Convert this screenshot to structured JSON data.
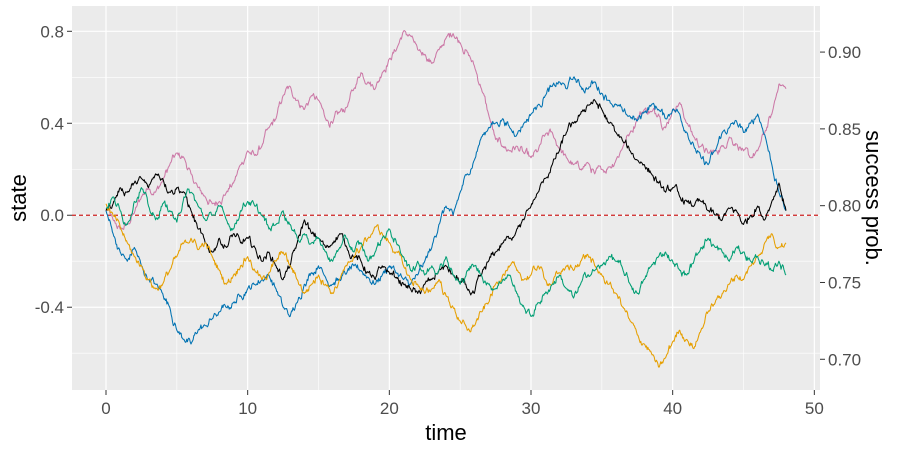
{
  "chart_data": {
    "type": "line",
    "xlabel": "time",
    "ylabel": "state",
    "y2label": "success prob.",
    "xlim": [
      -2.4,
      50.4
    ],
    "ylim": [
      -0.76,
      0.91
    ],
    "y2lim": [
      0.68,
      0.93
    ],
    "x_ticks": [
      0,
      10,
      20,
      30,
      40,
      50
    ],
    "y_ticks": [
      -0.4,
      0.0,
      0.4,
      0.8
    ],
    "y_tick_labels": [
      "-0.4",
      "0.0",
      "0.4",
      "0.8"
    ],
    "y2_ticks": [
      0.7,
      0.75,
      0.8,
      0.85,
      0.9
    ],
    "y2_tick_labels": [
      "0.70",
      "0.75",
      "0.80",
      "0.85",
      "0.90"
    ],
    "grid": true,
    "panel_background": "#EBEBEB",
    "reference_line": {
      "y": 0.0,
      "color": "#CC2222",
      "style": "dashed"
    },
    "series": [
      {
        "color": "#CC79A7",
        "x": [
          0,
          0.5,
          1,
          1.5,
          2,
          2.5,
          3,
          3.5,
          4,
          4.5,
          5,
          5.5,
          6,
          6.5,
          7,
          7.5,
          8,
          8.5,
          9,
          9.5,
          10,
          10.5,
          11,
          11.5,
          12,
          12.5,
          13,
          13.5,
          14,
          14.5,
          15,
          15.5,
          16,
          16.5,
          17,
          17.5,
          18,
          18.5,
          19,
          19.5,
          20,
          20.5,
          21,
          21.5,
          22,
          22.5,
          23,
          23.5,
          24,
          24.5,
          25,
          25.5,
          26,
          26.5,
          27,
          27.5,
          28,
          28.5,
          29,
          29.5,
          30,
          30.5,
          31,
          31.5,
          32,
          32.5,
          33,
          33.5,
          34,
          34.5,
          35,
          35.5,
          36,
          36.5,
          37,
          37.5,
          38,
          38.5,
          39,
          39.5,
          40,
          40.5,
          41,
          41.5,
          42,
          42.5,
          43,
          43.5,
          44,
          44.5,
          45,
          45.5,
          46,
          46.5,
          47,
          47.5,
          48
        ],
        "values": [
          0.03,
          -0.02,
          -0.06,
          -0.04,
          0.01,
          0.08,
          0.12,
          0.1,
          0.15,
          0.22,
          0.27,
          0.25,
          0.18,
          0.12,
          0.08,
          0.05,
          0.06,
          0.1,
          0.14,
          0.22,
          0.28,
          0.26,
          0.3,
          0.38,
          0.42,
          0.52,
          0.56,
          0.5,
          0.46,
          0.52,
          0.5,
          0.42,
          0.4,
          0.45,
          0.47,
          0.55,
          0.62,
          0.58,
          0.55,
          0.62,
          0.68,
          0.72,
          0.8,
          0.78,
          0.72,
          0.7,
          0.66,
          0.72,
          0.77,
          0.79,
          0.75,
          0.71,
          0.65,
          0.55,
          0.44,
          0.33,
          0.3,
          0.28,
          0.3,
          0.27,
          0.25,
          0.28,
          0.35,
          0.36,
          0.29,
          0.25,
          0.22,
          0.2,
          0.23,
          0.18,
          0.2,
          0.21,
          0.24,
          0.3,
          0.36,
          0.42,
          0.46,
          0.45,
          0.44,
          0.38,
          0.46,
          0.49,
          0.4,
          0.34,
          0.3,
          0.27,
          0.28,
          0.3,
          0.34,
          0.31,
          0.28,
          0.25,
          0.28,
          0.36,
          0.44,
          0.57,
          0.55
        ]
      },
      {
        "color": "#0072B2",
        "x": [
          0,
          0.5,
          1,
          1.5,
          2,
          2.5,
          3,
          3.5,
          4,
          4.5,
          5,
          5.5,
          6,
          6.5,
          7,
          7.5,
          8,
          8.5,
          9,
          9.5,
          10,
          10.5,
          11,
          11.5,
          12,
          12.5,
          13,
          13.5,
          14,
          14.5,
          15,
          15.5,
          16,
          16.5,
          17,
          17.5,
          18,
          18.5,
          19,
          19.5,
          20,
          20.5,
          21,
          21.5,
          22,
          22.5,
          23,
          23.5,
          24,
          24.5,
          25,
          25.5,
          26,
          26.5,
          27,
          27.5,
          28,
          28.5,
          29,
          29.5,
          30,
          30.5,
          31,
          31.5,
          32,
          32.5,
          33,
          33.5,
          34,
          34.5,
          35,
          35.5,
          36,
          36.5,
          37,
          37.5,
          38,
          38.5,
          39,
          39.5,
          40,
          40.5,
          41,
          41.5,
          42,
          42.5,
          43,
          43.5,
          44,
          44.5,
          45,
          45.5,
          46,
          46.5,
          47,
          47.5,
          48
        ],
        "values": [
          0.02,
          -0.08,
          -0.16,
          -0.2,
          -0.14,
          -0.22,
          -0.28,
          -0.3,
          -0.34,
          -0.4,
          -0.5,
          -0.54,
          -0.56,
          -0.5,
          -0.48,
          -0.45,
          -0.42,
          -0.4,
          -0.38,
          -0.35,
          -0.32,
          -0.3,
          -0.28,
          -0.26,
          -0.32,
          -0.4,
          -0.44,
          -0.38,
          -0.3,
          -0.25,
          -0.22,
          -0.27,
          -0.3,
          -0.28,
          -0.25,
          -0.22,
          -0.24,
          -0.27,
          -0.3,
          -0.26,
          -0.22,
          -0.25,
          -0.28,
          -0.3,
          -0.26,
          -0.2,
          -0.14,
          -0.04,
          0.04,
          0.0,
          0.1,
          0.18,
          0.24,
          0.34,
          0.38,
          0.4,
          0.42,
          0.38,
          0.35,
          0.4,
          0.44,
          0.48,
          0.52,
          0.56,
          0.58,
          0.55,
          0.6,
          0.56,
          0.55,
          0.58,
          0.53,
          0.5,
          0.48,
          0.45,
          0.43,
          0.41,
          0.45,
          0.48,
          0.46,
          0.42,
          0.46,
          0.44,
          0.36,
          0.3,
          0.25,
          0.22,
          0.28,
          0.36,
          0.38,
          0.41,
          0.36,
          0.4,
          0.44,
          0.35,
          0.22,
          0.1,
          0.02
        ]
      },
      {
        "color": "#000000",
        "x": [
          0,
          0.5,
          1,
          1.5,
          2,
          2.5,
          3,
          3.5,
          4,
          4.5,
          5,
          5.5,
          6,
          6.5,
          7,
          7.5,
          8,
          8.5,
          9,
          9.5,
          10,
          10.5,
          11,
          11.5,
          12,
          12.5,
          13,
          13.5,
          14,
          14.5,
          15,
          15.5,
          16,
          16.5,
          17,
          17.5,
          18,
          18.5,
          19,
          19.5,
          20,
          20.5,
          21,
          21.5,
          22,
          22.5,
          23,
          23.5,
          24,
          24.5,
          25,
          25.5,
          26,
          26.5,
          27,
          27.5,
          28,
          28.5,
          29,
          29.5,
          30,
          30.5,
          31,
          31.5,
          32,
          32.5,
          33,
          33.5,
          34,
          34.5,
          35,
          35.5,
          36,
          36.5,
          37,
          37.5,
          38,
          38.5,
          39,
          39.5,
          40,
          40.5,
          41,
          41.5,
          42,
          42.5,
          43,
          43.5,
          44,
          44.5,
          45,
          45.5,
          46,
          46.5,
          47,
          47.5,
          48
        ],
        "values": [
          0.02,
          0.05,
          0.12,
          0.1,
          0.14,
          0.16,
          0.12,
          0.18,
          0.16,
          0.1,
          0.12,
          0.1,
          0.02,
          -0.06,
          -0.12,
          -0.16,
          -0.1,
          -0.14,
          -0.08,
          -0.12,
          -0.1,
          -0.14,
          -0.2,
          -0.16,
          -0.22,
          -0.28,
          -0.22,
          -0.12,
          -0.02,
          -0.08,
          -0.1,
          -0.14,
          -0.12,
          -0.08,
          -0.14,
          -0.18,
          -0.2,
          -0.25,
          -0.28,
          -0.22,
          -0.25,
          -0.27,
          -0.3,
          -0.32,
          -0.34,
          -0.3,
          -0.28,
          -0.24,
          -0.22,
          -0.26,
          -0.29,
          -0.32,
          -0.34,
          -0.26,
          -0.2,
          -0.16,
          -0.12,
          -0.1,
          -0.06,
          -0.02,
          0.04,
          0.1,
          0.16,
          0.22,
          0.28,
          0.36,
          0.4,
          0.44,
          0.48,
          0.5,
          0.46,
          0.4,
          0.36,
          0.32,
          0.28,
          0.24,
          0.22,
          0.18,
          0.14,
          0.1,
          0.12,
          0.08,
          0.06,
          0.04,
          0.06,
          0.02,
          0.0,
          -0.02,
          0.03,
          0.02,
          -0.04,
          0.0,
          0.04,
          -0.02,
          0.06,
          0.14,
          0.02
        ]
      },
      {
        "color": "#E69F00",
        "x": [
          0,
          0.5,
          1,
          1.5,
          2,
          2.5,
          3,
          3.5,
          4,
          4.5,
          5,
          5.5,
          6,
          6.5,
          7,
          7.5,
          8,
          8.5,
          9,
          9.5,
          10,
          10.5,
          11,
          11.5,
          12,
          12.5,
          13,
          13.5,
          14,
          14.5,
          15,
          15.5,
          16,
          16.5,
          17,
          17.5,
          18,
          18.5,
          19,
          19.5,
          20,
          20.5,
          21,
          21.5,
          22,
          22.5,
          23,
          23.5,
          24,
          24.5,
          25,
          25.5,
          26,
          26.5,
          27,
          27.5,
          28,
          28.5,
          29,
          29.5,
          30,
          30.5,
          31,
          31.5,
          32,
          32.5,
          33,
          33.5,
          34,
          34.5,
          35,
          35.5,
          36,
          36.5,
          37,
          37.5,
          38,
          38.5,
          39,
          39.5,
          40,
          40.5,
          41,
          41.5,
          42,
          42.5,
          43,
          43.5,
          44,
          44.5,
          45,
          45.5,
          46,
          46.5,
          47,
          47.5,
          48
        ],
        "values": [
          0.05,
          0.0,
          -0.05,
          -0.12,
          -0.18,
          -0.22,
          -0.28,
          -0.32,
          -0.3,
          -0.24,
          -0.18,
          -0.12,
          -0.1,
          -0.15,
          -0.12,
          -0.18,
          -0.24,
          -0.3,
          -0.26,
          -0.22,
          -0.18,
          -0.24,
          -0.28,
          -0.25,
          -0.2,
          -0.16,
          -0.22,
          -0.28,
          -0.34,
          -0.3,
          -0.26,
          -0.3,
          -0.34,
          -0.28,
          -0.22,
          -0.18,
          -0.14,
          -0.1,
          -0.05,
          -0.08,
          -0.12,
          -0.16,
          -0.22,
          -0.28,
          -0.3,
          -0.34,
          -0.32,
          -0.28,
          -0.35,
          -0.4,
          -0.46,
          -0.5,
          -0.48,
          -0.42,
          -0.38,
          -0.3,
          -0.26,
          -0.22,
          -0.24,
          -0.28,
          -0.26,
          -0.22,
          -0.28,
          -0.3,
          -0.25,
          -0.22,
          -0.24,
          -0.2,
          -0.17,
          -0.22,
          -0.26,
          -0.3,
          -0.34,
          -0.4,
          -0.46,
          -0.52,
          -0.56,
          -0.6,
          -0.66,
          -0.62,
          -0.55,
          -0.5,
          -0.54,
          -0.58,
          -0.5,
          -0.42,
          -0.38,
          -0.34,
          -0.3,
          -0.26,
          -0.28,
          -0.22,
          -0.18,
          -0.12,
          -0.08,
          -0.14,
          -0.12
        ]
      },
      {
        "color": "#009E73",
        "x": [
          0,
          0.5,
          1,
          1.5,
          2,
          2.5,
          3,
          3.5,
          4,
          4.5,
          5,
          5.5,
          6,
          6.5,
          7,
          7.5,
          8,
          8.5,
          9,
          9.5,
          10,
          10.5,
          11,
          11.5,
          12,
          12.5,
          13,
          13.5,
          14,
          14.5,
          15,
          15.5,
          16,
          16.5,
          17,
          17.5,
          18,
          18.5,
          19,
          19.5,
          20,
          20.5,
          21,
          21.5,
          22,
          22.5,
          23,
          23.5,
          24,
          24.5,
          25,
          25.5,
          26,
          26.5,
          27,
          27.5,
          28,
          28.5,
          29,
          29.5,
          30,
          30.5,
          31,
          31.5,
          32,
          32.5,
          33,
          33.5,
          34,
          34.5,
          35,
          35.5,
          36,
          36.5,
          37,
          37.5,
          38,
          38.5,
          39,
          39.5,
          40,
          40.5,
          41,
          41.5,
          42,
          42.5,
          43,
          43.5,
          44,
          44.5,
          45,
          45.5,
          46,
          46.5,
          47,
          47.5,
          48
        ],
        "values": [
          0.03,
          0.08,
          0.02,
          -0.04,
          0.06,
          0.12,
          0.04,
          -0.02,
          0.05,
          0.02,
          -0.03,
          0.08,
          0.1,
          0.04,
          -0.02,
          0.0,
          0.04,
          -0.02,
          -0.06,
          0.02,
          0.06,
          0.04,
          0.0,
          -0.06,
          -0.04,
          0.02,
          -0.04,
          -0.1,
          -0.08,
          -0.12,
          -0.1,
          -0.16,
          -0.2,
          -0.14,
          -0.1,
          -0.16,
          -0.12,
          -0.2,
          -0.16,
          -0.1,
          -0.06,
          -0.12,
          -0.18,
          -0.24,
          -0.2,
          -0.26,
          -0.22,
          -0.24,
          -0.18,
          -0.26,
          -0.3,
          -0.24,
          -0.22,
          -0.26,
          -0.3,
          -0.32,
          -0.28,
          -0.26,
          -0.34,
          -0.4,
          -0.44,
          -0.38,
          -0.34,
          -0.3,
          -0.26,
          -0.32,
          -0.36,
          -0.3,
          -0.26,
          -0.24,
          -0.22,
          -0.18,
          -0.2,
          -0.24,
          -0.3,
          -0.34,
          -0.28,
          -0.22,
          -0.18,
          -0.16,
          -0.2,
          -0.24,
          -0.26,
          -0.2,
          -0.14,
          -0.1,
          -0.14,
          -0.16,
          -0.2,
          -0.14,
          -0.16,
          -0.2,
          -0.18,
          -0.22,
          -0.24,
          -0.2,
          -0.26
        ]
      }
    ]
  }
}
